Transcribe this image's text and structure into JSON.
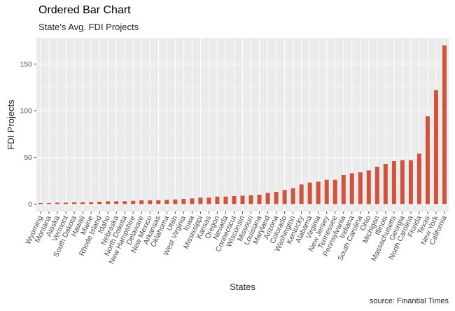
{
  "chart_data": {
    "type": "bar",
    "title": "Ordered Bar Chart",
    "subtitle": "State's Avg. FDI Projects",
    "xlabel": "States",
    "ylabel": "FDI Projects",
    "caption": "source: Finantial Times",
    "ylim": [
      -8,
      178
    ],
    "yticks": [
      0,
      50,
      100,
      150
    ],
    "grid": true,
    "legend": "none",
    "bar_color": "#cd5540",
    "panel_color": "#ebebeb",
    "categories": [
      "Wyoming",
      "Montana",
      "Alaska",
      "Vermont",
      "South Dakota",
      "Hawaii",
      "Maine",
      "Rhode Island",
      "Idaho",
      "Nebraska",
      "North Dakota",
      "New Hampshire",
      "Delaware",
      "New Mexico",
      "Arkansas",
      "Oklahoma",
      "Utah",
      "West Virginia",
      "Iowa",
      "Mississippi",
      "Kansas",
      "Oregon",
      "Nevada",
      "Connecticut",
      "Wisconsin",
      "Missouri",
      "Louisiana",
      "Maryland",
      "Arizona",
      "Colorado",
      "Washington",
      "Kentucky",
      "Alabama",
      "Virginia",
      "New Jersey",
      "Tennessee",
      "Pennsylvania",
      "Indiana",
      "South Carolina",
      "Ohio",
      "Michigan",
      "Illinois",
      "Massachusetts",
      "Georgia",
      "North Carolina",
      "Florida",
      "Texas",
      "New York",
      "California"
    ],
    "values": [
      1,
      1,
      1.5,
      1.5,
      2,
      2,
      2,
      2.5,
      3,
      3,
      3,
      3.5,
      4,
      4,
      4,
      4.5,
      5,
      5.5,
      6,
      7,
      7,
      8,
      8,
      8.5,
      9,
      9.5,
      10,
      12,
      13,
      15,
      17,
      21,
      23,
      24,
      26,
      26,
      31,
      33,
      34,
      36,
      40,
      43,
      46,
      47,
      47,
      54,
      94,
      122,
      170
    ]
  }
}
